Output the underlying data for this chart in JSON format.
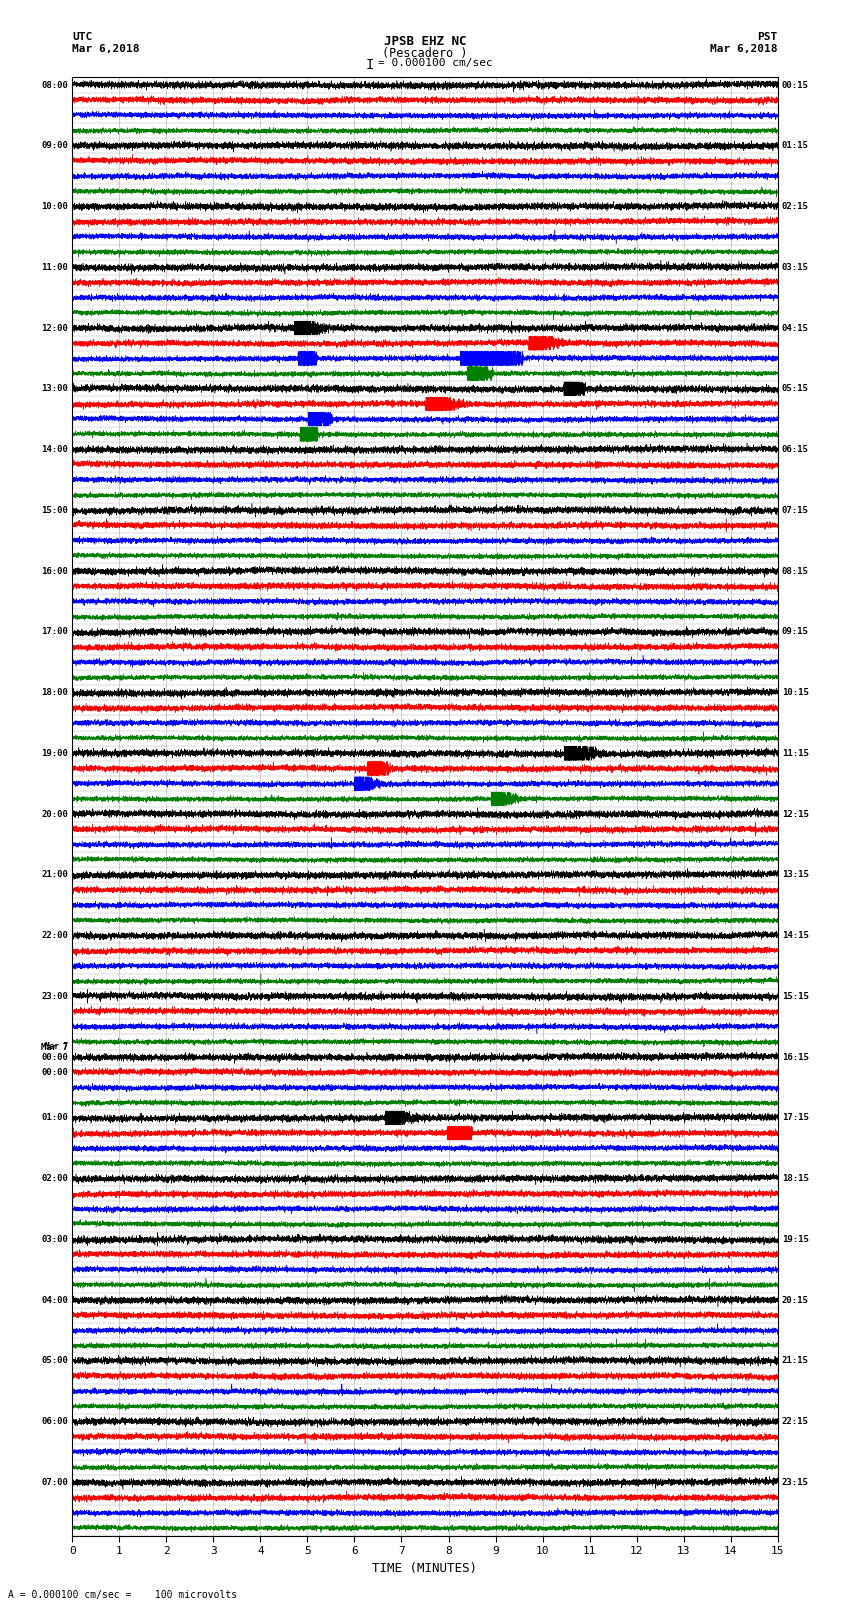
{
  "title_line1": "JPSB EHZ NC",
  "title_line2": "(Pescadero )",
  "scale_label": "= 0.000100 cm/sec",
  "bottom_label": "= 0.000100 cm/sec =    100 microvolts",
  "xlabel": "TIME (MINUTES)",
  "left_header_line1": "UTC",
  "left_header_line2": "Mar 6,2018",
  "right_header_line1": "PST",
  "right_header_line2": "Mar 6,2018",
  "left_times": [
    "08:00",
    "",
    "",
    "",
    "09:00",
    "",
    "",
    "",
    "10:00",
    "",
    "",
    "",
    "11:00",
    "",
    "",
    "",
    "12:00",
    "",
    "",
    "",
    "13:00",
    "",
    "",
    "",
    "14:00",
    "",
    "",
    "",
    "15:00",
    "",
    "",
    "",
    "16:00",
    "",
    "",
    "",
    "17:00",
    "",
    "",
    "",
    "18:00",
    "",
    "",
    "",
    "19:00",
    "",
    "",
    "",
    "20:00",
    "",
    "",
    "",
    "21:00",
    "",
    "",
    "",
    "22:00",
    "",
    "",
    "",
    "23:00",
    "",
    "",
    "",
    "Mar 7",
    "00:00",
    "",
    "",
    "01:00",
    "",
    "",
    "",
    "02:00",
    "",
    "",
    "",
    "03:00",
    "",
    "",
    "",
    "04:00",
    "",
    "",
    "",
    "05:00",
    "",
    "",
    "",
    "06:00",
    "",
    "",
    "",
    "07:00",
    "",
    "",
    ""
  ],
  "right_times": [
    "00:15",
    "",
    "",
    "",
    "01:15",
    "",
    "",
    "",
    "02:15",
    "",
    "",
    "",
    "03:15",
    "",
    "",
    "",
    "04:15",
    "",
    "",
    "",
    "05:15",
    "",
    "",
    "",
    "06:15",
    "",
    "",
    "",
    "07:15",
    "",
    "",
    "",
    "08:15",
    "",
    "",
    "",
    "09:15",
    "",
    "",
    "",
    "10:15",
    "",
    "",
    "",
    "11:15",
    "",
    "",
    "",
    "12:15",
    "",
    "",
    "",
    "13:15",
    "",
    "",
    "",
    "14:15",
    "",
    "",
    "",
    "15:15",
    "",
    "",
    "",
    "16:15",
    "",
    "",
    "",
    "17:15",
    "",
    "",
    "",
    "18:15",
    "",
    "",
    "",
    "19:15",
    "",
    "",
    "",
    "20:15",
    "",
    "",
    "",
    "21:15",
    "",
    "",
    "",
    "22:15",
    "",
    "",
    "",
    "23:15",
    "",
    "",
    ""
  ],
  "colors": [
    "black",
    "red",
    "blue",
    "green"
  ],
  "n_rows": 96,
  "xmin": 0,
  "xmax": 15,
  "bg_color": "#ffffff",
  "grid_color": "#aaaaaa",
  "fig_width": 8.5,
  "fig_height": 16.13,
  "dpi": 100,
  "seed": 42
}
